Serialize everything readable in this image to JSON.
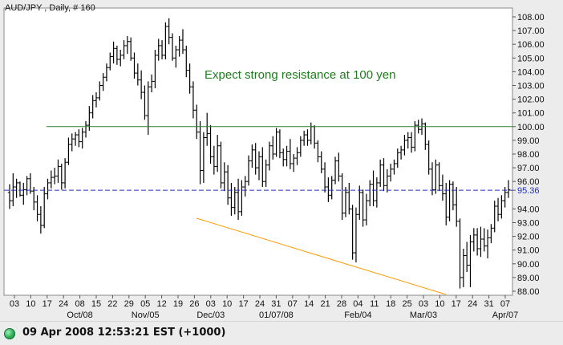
{
  "chart_data": {
    "type": "bar",
    "title": "AUD/JPY , Daily, # 160",
    "annotation": "Expect strong resistance at 100 yen",
    "current_price_label": "95.36",
    "current_price": 95.36,
    "resistance_level": 100.0,
    "y_ticks": [
      "108.00",
      "107.00",
      "106.00",
      "105.00",
      "104.00",
      "103.00",
      "102.00",
      "101.00",
      "100.00",
      "99.00",
      "98.00",
      "97.00",
      "96.00",
      "95.36",
      "94.00",
      "93.00",
      "92.00",
      "91.00",
      "90.00",
      "89.00",
      "88.00"
    ],
    "x_day_ticks": [
      "03",
      "10",
      "17",
      "24",
      "08",
      "15",
      "22",
      "29",
      "05",
      "12",
      "19",
      "26",
      "03",
      "10",
      "17",
      "24",
      "31",
      "07",
      "14",
      "21",
      "28",
      "04",
      "11",
      "18",
      "25",
      "03",
      "10",
      "17",
      "24",
      "31",
      "07"
    ],
    "x_month_labels": [
      "Oct/08",
      "Nov/05",
      "Dec/03",
      "01/07/08",
      "Feb/04",
      "Mar/03",
      "Apr/07"
    ],
    "ohlc": [
      [
        95.2,
        95.8,
        94.0,
        94.6
      ],
      [
        94.6,
        96.6,
        94.2,
        95.6
      ],
      [
        95.6,
        96.2,
        94.8,
        95.9
      ],
      [
        95.9,
        96.0,
        94.9,
        95.0
      ],
      [
        95.0,
        95.9,
        94.3,
        95.4
      ],
      [
        95.4,
        96.4,
        95.0,
        96.2
      ],
      [
        96.2,
        96.6,
        95.1,
        95.3
      ],
      [
        95.3,
        95.6,
        93.9,
        94.5
      ],
      [
        94.5,
        95.0,
        93.1,
        93.6
      ],
      [
        93.6,
        94.2,
        92.2,
        92.8
      ],
      [
        92.8,
        95.6,
        92.6,
        95.1
      ],
      [
        95.1,
        96.2,
        94.7,
        95.9
      ],
      [
        95.9,
        96.8,
        95.5,
        96.3
      ],
      [
        96.3,
        97.0,
        95.8,
        96.4
      ],
      [
        96.4,
        97.6,
        95.9,
        97.1
      ],
      [
        97.1,
        97.3,
        95.4,
        95.9
      ],
      [
        95.9,
        97.7,
        95.5,
        97.4
      ],
      [
        97.4,
        99.2,
        97.2,
        98.7
      ],
      [
        98.7,
        99.5,
        98.2,
        99.1
      ],
      [
        99.1,
        99.6,
        98.6,
        99.4
      ],
      [
        99.4,
        99.8,
        98.5,
        98.9
      ],
      [
        98.9,
        99.9,
        98.4,
        99.6
      ],
      [
        99.6,
        100.4,
        99.2,
        100.1
      ],
      [
        100.1,
        101.5,
        99.7,
        101.0
      ],
      [
        101.0,
        102.3,
        100.6,
        101.9
      ],
      [
        101.9,
        102.5,
        101.4,
        102.1
      ],
      [
        102.1,
        103.3,
        101.9,
        103.0
      ],
      [
        103.0,
        103.9,
        102.6,
        103.6
      ],
      [
        103.6,
        104.6,
        103.3,
        104.3
      ],
      [
        104.3,
        105.4,
        104.1,
        105.1
      ],
      [
        105.1,
        106.2,
        104.6,
        105.7
      ],
      [
        105.7,
        105.9,
        104.5,
        104.9
      ],
      [
        104.9,
        105.6,
        104.4,
        105.2
      ],
      [
        105.2,
        106.3,
        104.9,
        105.9
      ],
      [
        105.9,
        106.6,
        105.3,
        106.2
      ],
      [
        106.2,
        106.5,
        104.8,
        105.0
      ],
      [
        105.0,
        105.4,
        103.5,
        103.9
      ],
      [
        103.9,
        104.6,
        103.0,
        103.4
      ],
      [
        103.4,
        104.1,
        102.0,
        102.5
      ],
      [
        102.5,
        103.0,
        100.5,
        100.8
      ],
      [
        100.8,
        103.3,
        99.4,
        102.9
      ],
      [
        102.9,
        103.8,
        102.5,
        103.3
      ],
      [
        103.3,
        105.6,
        102.8,
        105.2
      ],
      [
        105.2,
        106.4,
        104.8,
        105.9
      ],
      [
        105.9,
        106.3,
        104.9,
        105.2
      ],
      [
        105.2,
        107.6,
        104.9,
        107.3
      ],
      [
        107.3,
        107.9,
        106.0,
        106.5
      ],
      [
        106.5,
        106.8,
        104.8,
        105.0
      ],
      [
        105.0,
        105.9,
        104.3,
        105.6
      ],
      [
        105.6,
        106.6,
        105.1,
        106.3
      ],
      [
        106.3,
        107.1,
        105.3,
        105.6
      ],
      [
        105.6,
        105.9,
        103.6,
        104.1
      ],
      [
        104.1,
        104.6,
        102.4,
        102.9
      ],
      [
        102.9,
        103.3,
        100.6,
        101.2
      ],
      [
        101.2,
        101.6,
        99.1,
        99.6
      ],
      [
        99.6,
        100.4,
        95.8,
        96.8
      ],
      [
        96.8,
        99.6,
        95.9,
        99.2
      ],
      [
        99.2,
        101.0,
        98.6,
        99.5
      ],
      [
        99.5,
        100.1,
        97.3,
        97.8
      ],
      [
        97.8,
        98.6,
        96.5,
        97.1
      ],
      [
        97.1,
        99.4,
        96.7,
        98.6
      ],
      [
        98.6,
        98.9,
        95.5,
        95.9
      ],
      [
        95.9,
        97.4,
        95.3,
        96.7
      ],
      [
        96.7,
        97.2,
        94.3,
        94.8
      ],
      [
        94.8,
        95.9,
        93.5,
        94.1
      ],
      [
        94.1,
        95.6,
        93.6,
        95.2
      ],
      [
        95.2,
        96.2,
        93.2,
        93.8
      ],
      [
        93.8,
        96.1,
        93.5,
        95.6
      ],
      [
        95.6,
        96.4,
        94.9,
        96.0
      ],
      [
        96.0,
        97.9,
        95.7,
        97.5
      ],
      [
        97.5,
        98.7,
        97.0,
        98.3
      ],
      [
        98.3,
        98.8,
        96.5,
        97.0
      ],
      [
        97.0,
        98.2,
        96.1,
        97.8
      ],
      [
        97.8,
        98.5,
        95.6,
        96.0
      ],
      [
        96.0,
        97.6,
        95.6,
        97.2
      ],
      [
        97.2,
        98.9,
        96.8,
        98.6
      ],
      [
        98.6,
        99.3,
        97.6,
        98.0
      ],
      [
        98.0,
        99.9,
        97.8,
        99.6
      ],
      [
        99.6,
        99.8,
        97.7,
        98.1
      ],
      [
        98.1,
        98.4,
        97.1,
        97.6
      ],
      [
        97.6,
        98.6,
        97.1,
        98.2
      ],
      [
        98.2,
        99.1,
        96.9,
        97.3
      ],
      [
        97.3,
        98.0,
        96.7,
        97.7
      ],
      [
        97.7,
        98.5,
        97.2,
        98.1
      ],
      [
        98.1,
        99.3,
        97.8,
        99.0
      ],
      [
        99.0,
        99.7,
        98.6,
        99.4
      ],
      [
        99.4,
        99.8,
        98.6,
        99.0
      ],
      [
        99.0,
        100.3,
        98.7,
        100.0
      ],
      [
        100.0,
        100.1,
        98.4,
        98.8
      ],
      [
        98.8,
        99.0,
        97.4,
        97.8
      ],
      [
        97.8,
        98.2,
        96.6,
        96.9
      ],
      [
        96.9,
        97.4,
        95.2,
        95.6
      ],
      [
        95.6,
        96.3,
        94.5,
        95.0
      ],
      [
        95.0,
        96.4,
        94.7,
        96.1
      ],
      [
        96.1,
        97.8,
        95.8,
        97.5
      ],
      [
        97.5,
        98.1,
        96.0,
        96.4
      ],
      [
        96.4,
        96.6,
        93.2,
        93.7
      ],
      [
        93.7,
        95.6,
        93.4,
        95.2
      ],
      [
        95.2,
        95.9,
        93.6,
        94.0
      ],
      [
        94.0,
        94.3,
        90.3,
        90.8
      ],
      [
        90.8,
        94.1,
        90.1,
        93.6
      ],
      [
        93.6,
        95.7,
        93.2,
        95.2
      ],
      [
        95.2,
        95.4,
        92.7,
        93.2
      ],
      [
        93.2,
        95.1,
        92.8,
        94.6
      ],
      [
        94.6,
        96.1,
        94.2,
        95.8
      ],
      [
        95.8,
        96.8,
        94.2,
        94.6
      ],
      [
        94.6,
        96.3,
        94.1,
        95.9
      ],
      [
        95.9,
        97.6,
        95.6,
        97.2
      ],
      [
        97.2,
        97.7,
        95.3,
        95.7
      ],
      [
        95.7,
        96.9,
        95.2,
        96.4
      ],
      [
        96.4,
        97.3,
        96.0,
        96.9
      ],
      [
        96.9,
        97.6,
        96.5,
        97.3
      ],
      [
        97.3,
        98.4,
        97.0,
        98.1
      ],
      [
        98.1,
        98.6,
        97.6,
        98.3
      ],
      [
        98.3,
        99.4,
        97.9,
        99.0
      ],
      [
        99.0,
        99.6,
        98.4,
        99.2
      ],
      [
        99.2,
        99.6,
        98.1,
        98.5
      ],
      [
        98.5,
        100.4,
        98.2,
        100.1
      ],
      [
        100.1,
        100.5,
        99.5,
        99.8
      ],
      [
        99.8,
        100.6,
        99.4,
        100.2
      ],
      [
        100.2,
        100.3,
        98.3,
        98.7
      ],
      [
        98.7,
        99.0,
        96.5,
        96.9
      ],
      [
        96.9,
        97.4,
        95.0,
        95.4
      ],
      [
        95.4,
        97.6,
        95.1,
        97.2
      ],
      [
        97.2,
        97.4,
        95.3,
        95.7
      ],
      [
        95.7,
        96.5,
        94.6,
        95.1
      ],
      [
        95.1,
        95.9,
        92.8,
        93.4
      ],
      [
        93.4,
        96.1,
        93.1,
        95.8
      ],
      [
        95.8,
        96.0,
        93.9,
        94.3
      ],
      [
        94.3,
        95.6,
        92.7,
        93.1
      ],
      [
        93.1,
        93.3,
        88.2,
        89.0
      ],
      [
        89.0,
        91.1,
        88.3,
        90.6
      ],
      [
        90.6,
        91.6,
        89.4,
        89.9
      ],
      [
        89.9,
        92.1,
        88.3,
        91.6
      ],
      [
        91.6,
        92.6,
        90.9,
        92.1
      ],
      [
        92.1,
        92.6,
        90.6,
        91.1
      ],
      [
        91.1,
        92.7,
        90.5,
        91.8
      ],
      [
        91.8,
        92.6,
        90.9,
        91.3
      ],
      [
        91.3,
        92.5,
        90.4,
        91.9
      ],
      [
        91.9,
        92.9,
        91.5,
        92.6
      ],
      [
        92.6,
        94.6,
        92.3,
        94.2
      ],
      [
        94.2,
        94.8,
        93.1,
        93.6
      ],
      [
        93.6,
        95.0,
        93.3,
        94.6
      ],
      [
        94.6,
        95.6,
        94.1,
        95.2
      ],
      [
        95.2,
        96.1,
        94.8,
        95.4
      ]
    ]
  },
  "status": {
    "text": "09 Apr 2008 12:53:21 EST (+1000)"
  },
  "colors": {
    "plot_bg": "#ffffff",
    "bars": "#000000",
    "resistance": "#2e7d2e",
    "current_price": "#2b2bc6",
    "trendline": "#ff9900",
    "annotation": "#1d7d1d",
    "axis_text": "#111111",
    "price_label": "#1f2fc2"
  }
}
